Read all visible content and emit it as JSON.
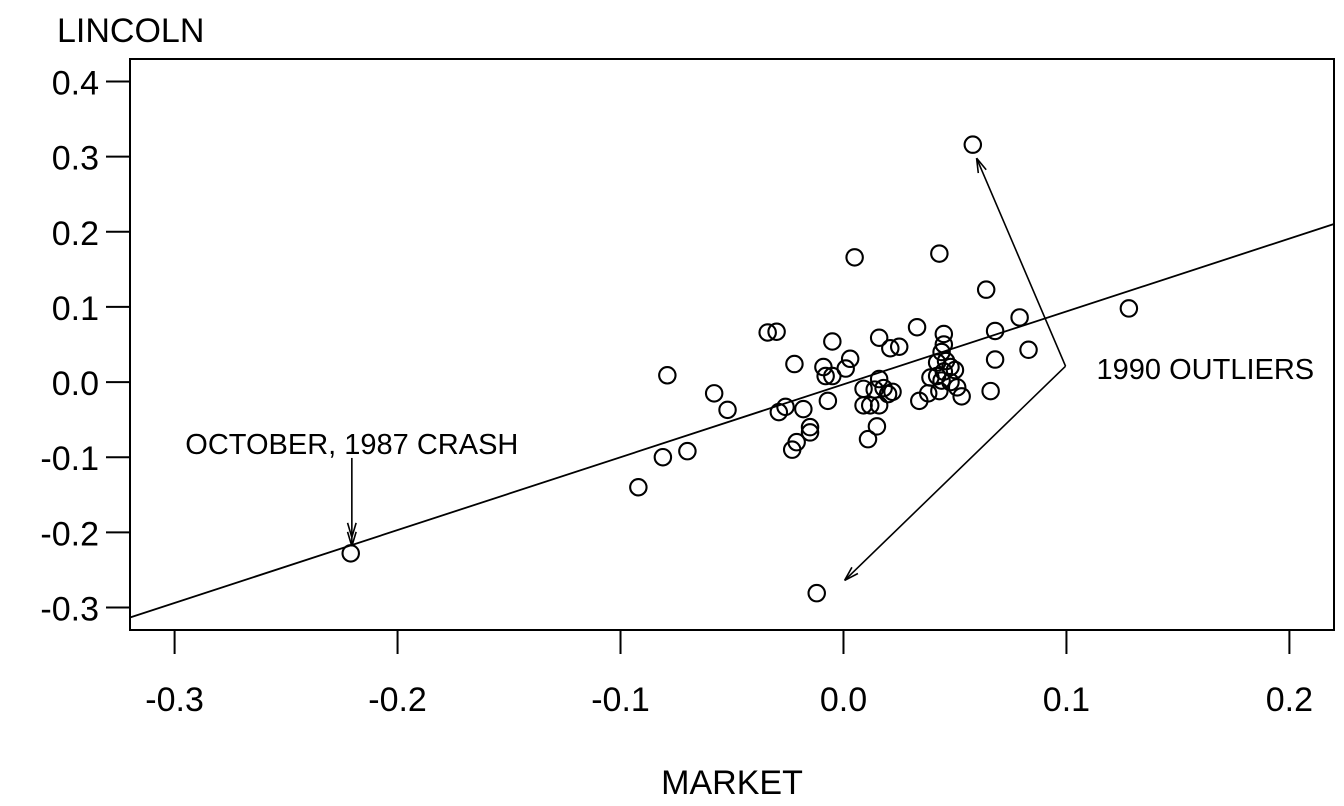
{
  "chart_data": {
    "type": "scatter",
    "title": "",
    "xlabel": "MARKET",
    "ylabel": "LINCOLN",
    "xlim": [
      -0.32,
      0.22
    ],
    "ylim": [
      -0.33,
      0.43
    ],
    "grid": false,
    "legend": null,
    "marker": "open-circle",
    "foreground_color": "#000000",
    "background_color": "#ffffff",
    "x_ticks": [
      -0.3,
      -0.2,
      -0.1,
      0.0,
      0.1,
      0.2
    ],
    "x_tick_labels": [
      "-0.3",
      "-0.2",
      "-0.1",
      "0.0",
      "0.1",
      "0.2"
    ],
    "y_ticks": [
      0.4,
      0.3,
      0.2,
      0.1,
      0.0,
      -0.1,
      -0.2,
      -0.3
    ],
    "y_tick_labels": [
      "0.4",
      "0.3",
      "0.2",
      "0.1",
      "0.0",
      "-0.1",
      "-0.2",
      "-0.3"
    ],
    "points": [
      [
        -0.221,
        -0.228
      ],
      [
        -0.092,
        -0.14
      ],
      [
        -0.081,
        -0.1
      ],
      [
        -0.07,
        -0.092
      ],
      [
        -0.079,
        0.009
      ],
      [
        -0.058,
        -0.015
      ],
      [
        -0.052,
        -0.037
      ],
      [
        -0.034,
        0.066
      ],
      [
        -0.03,
        0.067
      ],
      [
        -0.029,
        -0.04
      ],
      [
        -0.026,
        -0.033
      ],
      [
        -0.022,
        0.024
      ],
      [
        -0.018,
        -0.036
      ],
      [
        -0.023,
        -0.09
      ],
      [
        -0.021,
        -0.08
      ],
      [
        -0.015,
        -0.067
      ],
      [
        -0.015,
        -0.06
      ],
      [
        -0.012,
        -0.281
      ],
      [
        -0.009,
        0.02
      ],
      [
        -0.008,
        0.008
      ],
      [
        -0.005,
        0.008
      ],
      [
        -0.005,
        0.054
      ],
      [
        -0.007,
        -0.025
      ],
      [
        0.005,
        0.166
      ],
      [
        0.043,
        0.171
      ],
      [
        0.001,
        0.018
      ],
      [
        0.003,
        0.031
      ],
      [
        0.016,
        0.059
      ],
      [
        0.021,
        0.045
      ],
      [
        0.025,
        0.047
      ],
      [
        0.033,
        0.073
      ],
      [
        0.009,
        -0.009
      ],
      [
        0.014,
        -0.01
      ],
      [
        0.018,
        -0.008
      ],
      [
        0.016,
        0.004
      ],
      [
        0.02,
        -0.016
      ],
      [
        0.022,
        -0.013
      ],
      [
        0.009,
        -0.031
      ],
      [
        0.012,
        -0.031
      ],
      [
        0.016,
        -0.031
      ],
      [
        0.011,
        -0.076
      ],
      [
        0.015,
        -0.059
      ],
      [
        0.034,
        -0.025
      ],
      [
        0.045,
        0.064
      ],
      [
        0.045,
        0.05
      ],
      [
        0.044,
        0.04
      ],
      [
        0.046,
        0.028
      ],
      [
        0.042,
        0.026
      ],
      [
        0.048,
        0.02
      ],
      [
        0.05,
        0.016
      ],
      [
        0.045,
        0.014
      ],
      [
        0.042,
        0.008
      ],
      [
        0.039,
        0.006
      ],
      [
        0.044,
        0.002
      ],
      [
        0.048,
        0.0
      ],
      [
        0.038,
        -0.015
      ],
      [
        0.043,
        -0.012
      ],
      [
        0.051,
        -0.007
      ],
      [
        0.053,
        -0.019
      ],
      [
        0.058,
        0.316
      ],
      [
        0.064,
        0.123
      ],
      [
        0.068,
        0.068
      ],
      [
        0.079,
        0.086
      ],
      [
        0.068,
        0.03
      ],
      [
        0.083,
        0.043
      ],
      [
        0.066,
        -0.012
      ],
      [
        0.128,
        0.098
      ]
    ],
    "regression_line": {
      "slope": 0.97,
      "intercept": -0.003
    },
    "annotations": [
      {
        "id": "october-1987-crash",
        "text": "OCTOBER, 1987 CRASH",
        "x": -0.2205,
        "y": -0.0955,
        "anchor": "middle",
        "arrows": [
          {
            "from": [
              -0.2205,
              -0.101
            ],
            "to": [
              -0.2205,
              -0.2185
            ],
            "double_head": true
          }
        ]
      },
      {
        "id": "1990-outliers",
        "text": "1990 OUTLIERS",
        "x": 0.1135,
        "y": 0.004,
        "anchor": "start",
        "arrows": [
          {
            "from": [
              0.0996,
              0.0212
            ],
            "to": [
              0.0597,
              0.298
            ],
            "double_head": false
          },
          {
            "from": [
              0.0996,
              0.0212
            ],
            "to": [
              0.0005,
              -0.264
            ],
            "double_head": false
          }
        ]
      }
    ]
  }
}
